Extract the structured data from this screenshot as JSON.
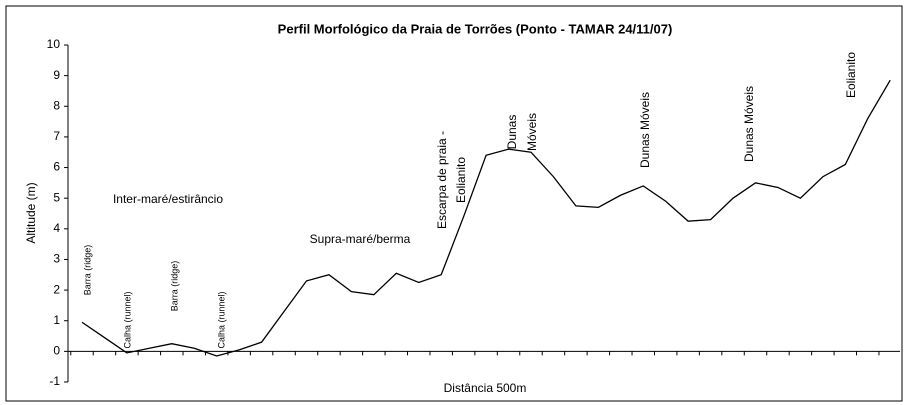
{
  "chart_data": {
    "type": "line",
    "title": "Perfil Morfológico da Praia de Torrões (Ponto - TAMAR 24/11/07)",
    "y_label": "Altitude (m)",
    "x_label": "Distância 500m",
    "categories": [
      null,
      null,
      null,
      null,
      null,
      null,
      null,
      null,
      null,
      null,
      null,
      null,
      null,
      null,
      null,
      null,
      null,
      null,
      null,
      null,
      null,
      null,
      null,
      null,
      null,
      null,
      null,
      null,
      null,
      null,
      null,
      null,
      null,
      null,
      null,
      null,
      null
    ],
    "series": [
      {
        "color": "#000000",
        "values": [
          0.95,
          0.45,
          -0.05,
          0.1,
          0.25,
          0.1,
          -0.15,
          0.05,
          0.3,
          1.3,
          2.3,
          2.5,
          1.95,
          1.85,
          2.55,
          2.25,
          2.5,
          4.4,
          6.4,
          6.6,
          6.5,
          5.7,
          4.75,
          4.7,
          5.1,
          5.4,
          4.9,
          4.25,
          4.3,
          5.0,
          5.5,
          5.35,
          5.0,
          5.7,
          6.1,
          7.6,
          8.85
        ]
      }
    ],
    "ylim": [
      -1,
      10
    ],
    "yticks": [
      -1,
      0,
      1,
      2,
      3,
      4,
      5,
      6,
      7,
      8,
      9,
      10
    ],
    "annotations": [
      [
        "Inter-maré/estirâncio"
      ],
      [
        "Supra-maré/berma"
      ],
      [
        "Barra (ridge)"
      ],
      [
        "Calha (runnel)"
      ],
      [
        "Barra (ridge)"
      ],
      [
        "Calha (runnel)"
      ],
      [
        "Escarpa de praia -",
        "Eolianito"
      ],
      [
        "Dunas",
        "Móveis"
      ],
      [
        "Dunas Móveis"
      ],
      [
        "Dunas Móveis"
      ],
      [
        "Eolianito"
      ]
    ]
  }
}
